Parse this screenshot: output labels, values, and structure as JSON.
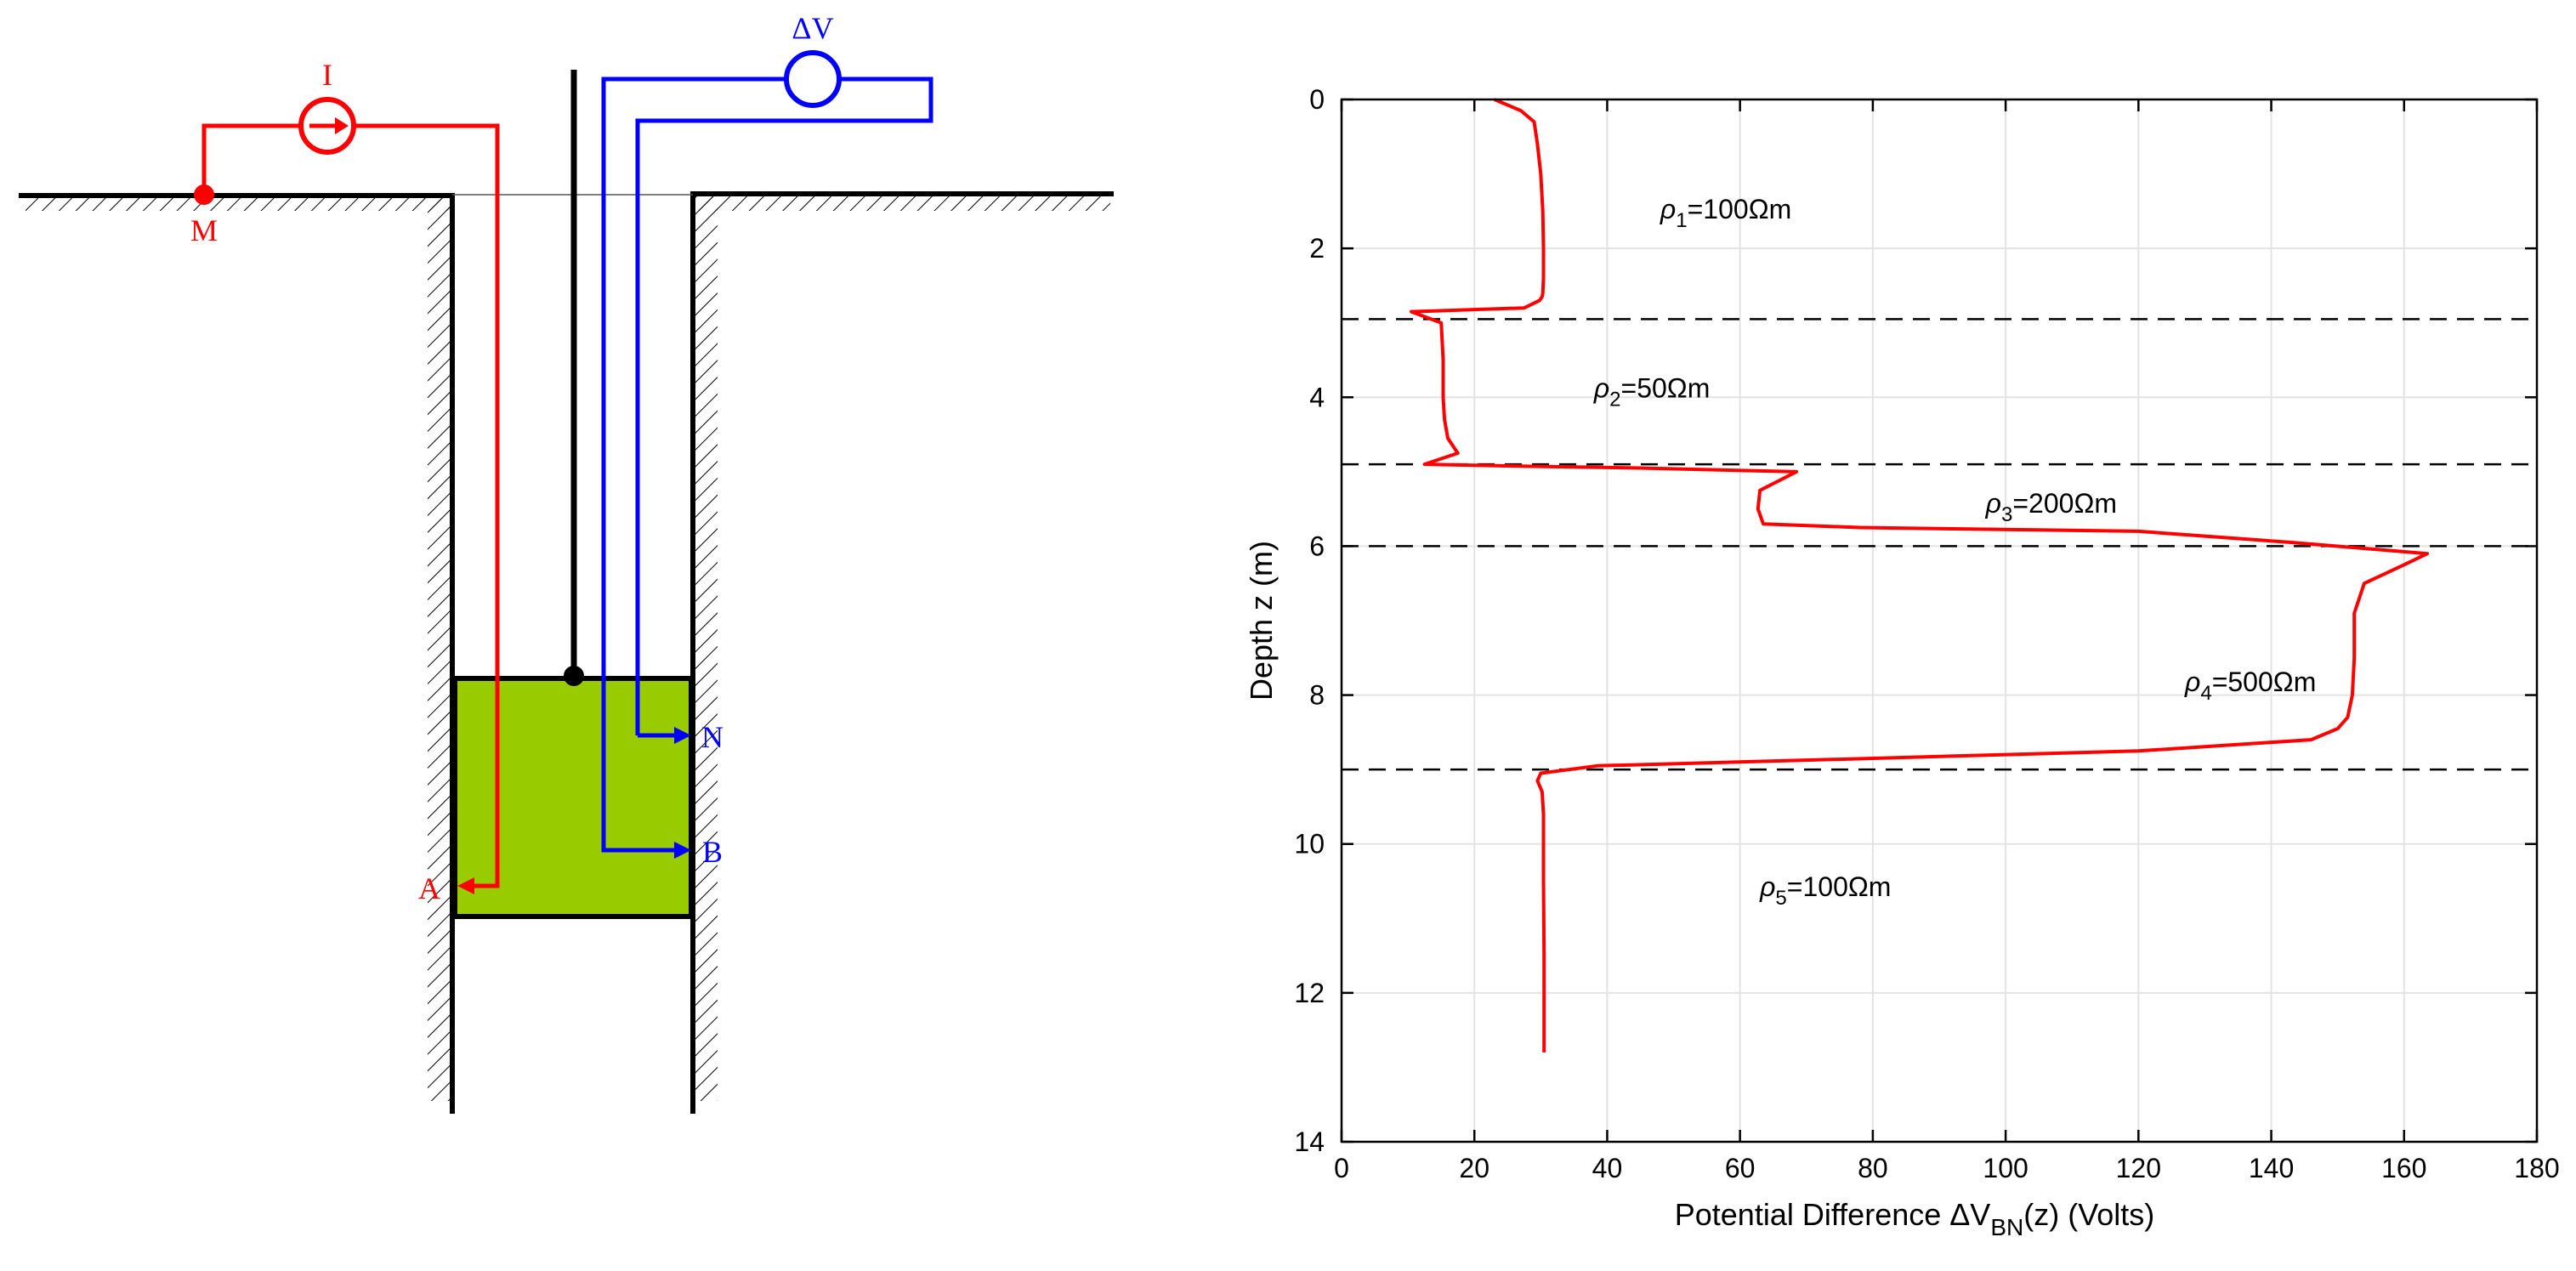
{
  "diagram": {
    "colors": {
      "current": "#ff0000",
      "voltage": "#0000ff",
      "tool": "#99cc00",
      "structure": "#000000"
    },
    "labels": {
      "current_source": "I",
      "voltage_meter": "ΔV",
      "surface_electrode": "M",
      "electrode_a": "A",
      "electrode_n": "N",
      "electrode_b": "B"
    }
  },
  "chart_data": {
    "type": "line",
    "xlabel_prefix": "Potential Difference ΔV",
    "xlabel_sub": "BN",
    "xlabel_suffix": "(z)  (Volts)",
    "ylabel": "Depth z  (m)",
    "xlim": [
      0,
      180
    ],
    "ylim": [
      0,
      14
    ],
    "y_inverted": true,
    "grid": true,
    "xticks": [
      0,
      20,
      40,
      60,
      80,
      100,
      120,
      140,
      160,
      180
    ],
    "yticks": [
      0,
      2,
      4,
      6,
      8,
      10,
      12,
      14
    ],
    "boundaries": [
      2.95,
      4.9,
      6.0,
      9.0
    ],
    "layers": [
      {
        "sym": "ρ",
        "sub": "1",
        "text": "=100Ωm",
        "x": 48,
        "y": 1.6
      },
      {
        "sym": "ρ",
        "sub": "2",
        "text": "=50Ωm",
        "x": 38,
        "y": 4.0
      },
      {
        "sym": "ρ",
        "sub": "3",
        "text": "=200Ωm",
        "x": 97,
        "y": 5.55
      },
      {
        "sym": "ρ",
        "sub": "4",
        "text": "=500Ωm",
        "x": 127,
        "y": 7.95
      },
      {
        "sym": "ρ",
        "sub": "5",
        "text": "=100Ωm",
        "x": 63,
        "y": 10.7
      }
    ],
    "series": [
      {
        "color": "#ff0000",
        "x": [
          23,
          27,
          29,
          29.5,
          30,
          30.3,
          30.4,
          30.4,
          30.3,
          30.2,
          29.8,
          27.5,
          10.5,
          15,
          15.3,
          15.3,
          15.5,
          16,
          17.5,
          12.5,
          24,
          45,
          68.5,
          63,
          62.7,
          63.5,
          78,
          120,
          143,
          163.5,
          160,
          154,
          152.5,
          152.5,
          152.2,
          151.5,
          150,
          146,
          120,
          80,
          38.5,
          30,
          29.5,
          30.2,
          30.4,
          30.4,
          30.5,
          30.5
        ],
        "y": [
          0.0,
          0.15,
          0.3,
          0.6,
          1.0,
          1.5,
          2.0,
          2.4,
          2.6,
          2.65,
          2.7,
          2.8,
          2.85,
          3.0,
          3.5,
          4.0,
          4.3,
          4.55,
          4.75,
          4.9,
          4.92,
          4.95,
          5.0,
          5.25,
          5.5,
          5.7,
          5.75,
          5.8,
          5.95,
          6.1,
          6.25,
          6.5,
          6.9,
          7.5,
          8.0,
          8.3,
          8.45,
          8.6,
          8.75,
          8.85,
          8.95,
          9.05,
          9.15,
          9.3,
          9.6,
          10.5,
          11.5,
          12.8
        ]
      }
    ]
  }
}
